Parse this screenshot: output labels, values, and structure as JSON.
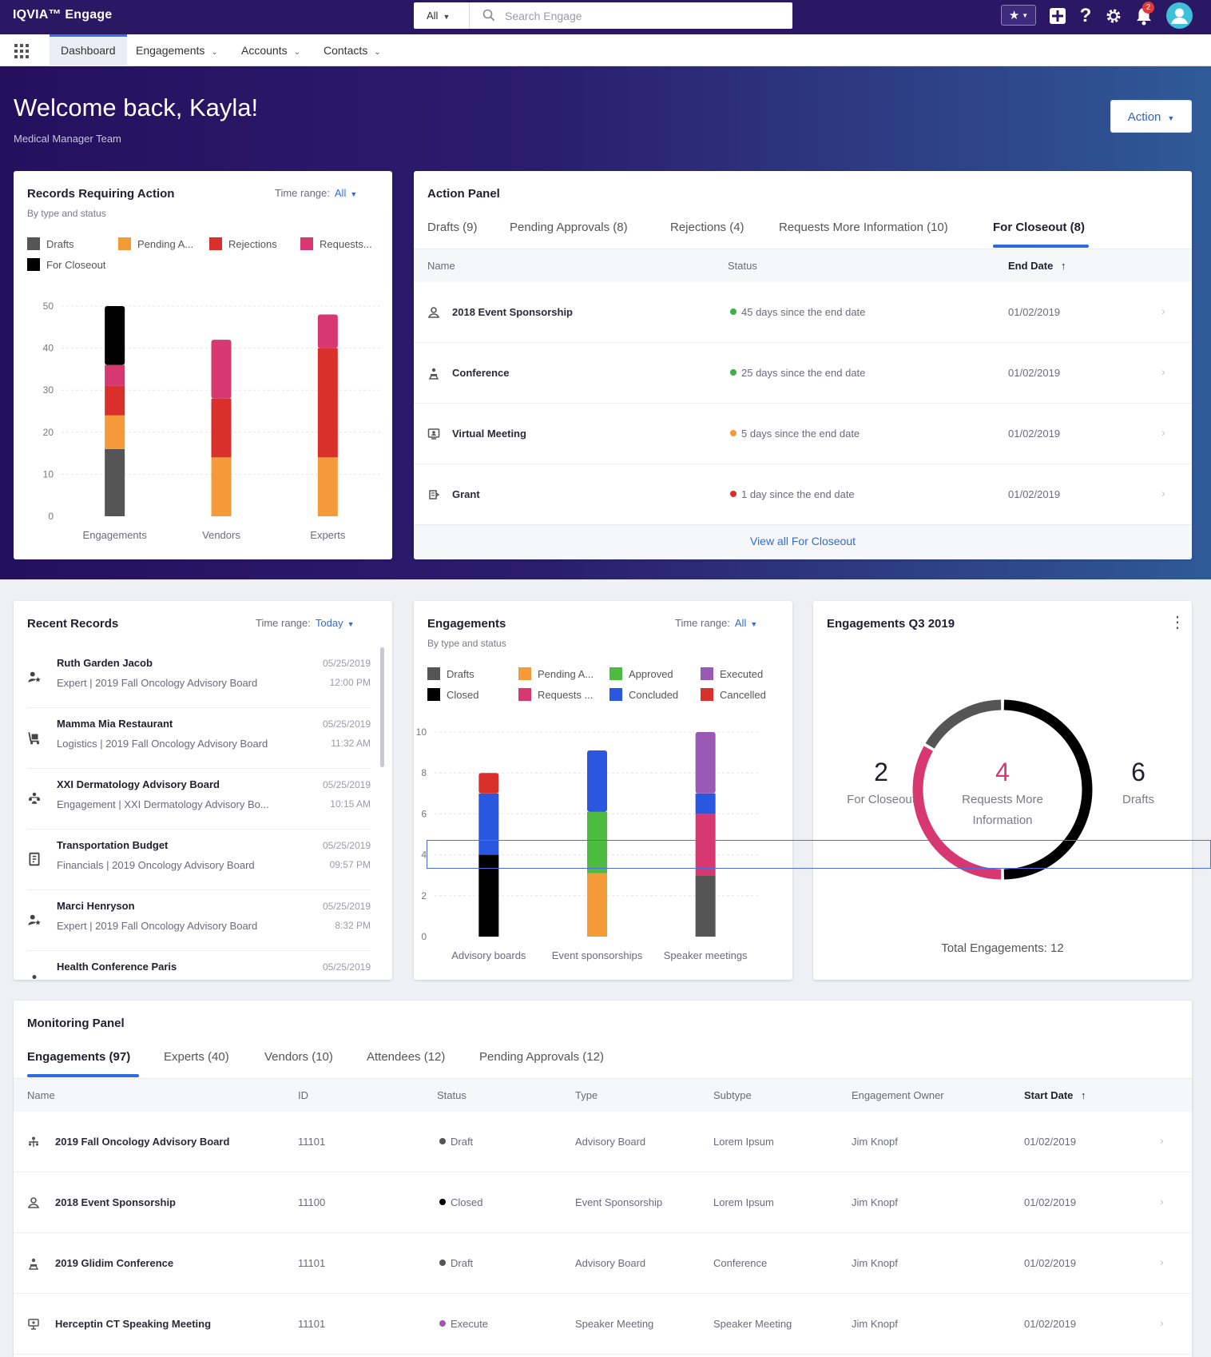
{
  "app": {
    "brand": "IQVIA™ Engage",
    "search_scope": "All",
    "search_placeholder": "Search Engage",
    "notification_count": "2"
  },
  "nav": {
    "items": [
      {
        "label": "Dashboard",
        "active": true
      },
      {
        "label": "Engagements"
      },
      {
        "label": "Accounts"
      },
      {
        "label": "Contacts"
      }
    ]
  },
  "hero": {
    "welcome": "Welcome back, Kayla!",
    "team": "Medical Manager Team",
    "action_label": "Action"
  },
  "records_card": {
    "title": "Records Requiring Action",
    "subtitle": "By type and status",
    "time_range_label": "Time range:",
    "time_range_value": "All",
    "legend": [
      {
        "label": "Drafts",
        "color": "#555555"
      },
      {
        "label": "Pending A...",
        "color": "#f59a38"
      },
      {
        "label": "Rejections",
        "color": "#d9302c"
      },
      {
        "label": "Requests...",
        "color": "#d6386f"
      },
      {
        "label": "For Closeout",
        "color": "#000000"
      }
    ]
  },
  "chart_data": [
    {
      "type": "bar",
      "stacked": true,
      "title": "Records Requiring Action",
      "subtitle": "By type and status",
      "categories": [
        "Engagements",
        "Vendors",
        "Experts"
      ],
      "ylim": [
        0,
        50
      ],
      "yticks": [
        0,
        10,
        20,
        30,
        40,
        50
      ],
      "grid": true,
      "legend_position": "top",
      "series": [
        {
          "name": "Drafts",
          "color": "#555555",
          "values": [
            16,
            0,
            0
          ]
        },
        {
          "name": "Pending A...",
          "color": "#f59a38",
          "values": [
            8,
            14,
            14
          ]
        },
        {
          "name": "Rejections",
          "color": "#d9302c",
          "values": [
            7,
            14,
            26
          ]
        },
        {
          "name": "Requests...",
          "color": "#d6386f",
          "values": [
            5,
            14,
            8
          ]
        },
        {
          "name": "For Closeout",
          "color": "#000000",
          "values": [
            14,
            0,
            0
          ]
        }
      ]
    },
    {
      "type": "bar",
      "stacked": true,
      "title": "Engagements",
      "subtitle": "By type and status",
      "categories": [
        "Advisory boards",
        "Event sponsorships",
        "Speaker meetings"
      ],
      "ylim": [
        0,
        10
      ],
      "yticks": [
        0,
        2,
        4,
        6,
        8,
        10
      ],
      "grid": true,
      "legend_position": "top",
      "series": [
        {
          "name": "Drafts",
          "color": "#555555",
          "values": [
            0,
            0,
            3
          ]
        },
        {
          "name": "Closed",
          "color": "#000000",
          "values": [
            4,
            0,
            0
          ]
        },
        {
          "name": "Pending A...",
          "color": "#f59a38",
          "values": [
            0,
            3.1,
            0
          ]
        },
        {
          "name": "Requests ...",
          "color": "#d6386f",
          "values": [
            0,
            0,
            3
          ]
        },
        {
          "name": "Approved",
          "color": "#4dbb3f",
          "values": [
            0,
            3,
            0
          ]
        },
        {
          "name": "Concluded",
          "color": "#2a57e0",
          "values": [
            3,
            3,
            1
          ]
        },
        {
          "name": "Executed",
          "color": "#9b59b6",
          "values": [
            0,
            0,
            3
          ]
        },
        {
          "name": "Cancelled",
          "color": "#d9302c",
          "values": [
            1,
            0,
            0
          ]
        }
      ]
    },
    {
      "type": "pie",
      "donut": true,
      "title": "Engagements Q3 2019",
      "total_label": "Total Engagements: 12",
      "series": [
        {
          "name": "For Closeout",
          "value": 2,
          "color": "#555555"
        },
        {
          "name": "Requests More Information",
          "value": 4,
          "color": "#d6386f"
        },
        {
          "name": "Drafts",
          "value": 6,
          "color": "#000000"
        }
      ]
    }
  ],
  "action_panel": {
    "title": "Action Panel",
    "tabs": [
      {
        "label": "Drafts (9)"
      },
      {
        "label": "Pending Approvals (8)"
      },
      {
        "label": "Rejections (4)"
      },
      {
        "label": "Requests More Information (10)"
      },
      {
        "label": "For Closeout (8)",
        "active": true
      }
    ],
    "columns": {
      "name": "Name",
      "status": "Status",
      "end_date": "End Date"
    },
    "rows": [
      {
        "icon": "sponsorship-icon",
        "name": "2018 Event Sponsorship",
        "status": "45 days since the end date",
        "status_color": "#3cb043",
        "date": "01/02/2019"
      },
      {
        "icon": "conference-icon",
        "name": "Conference",
        "status": "25 days since the end date",
        "status_color": "#3cb043",
        "date": "01/02/2019"
      },
      {
        "icon": "virtual-meeting-icon",
        "name": "Virtual Meeting",
        "status": "5 days since the end date",
        "status_color": "#f59a38",
        "date": "01/02/2019"
      },
      {
        "icon": "grant-icon",
        "name": "Grant",
        "status": "1 day since the end date",
        "status_color": "#d9302c",
        "date": "01/02/2019"
      }
    ],
    "view_all": "View all For Closeout"
  },
  "recent_records": {
    "title": "Recent Records",
    "time_range_label": "Time range:",
    "time_range_value": "Today",
    "items": [
      {
        "icon": "expert-icon",
        "title": "Ruth Garden Jacob",
        "sub": "Expert | 2019 Fall Oncology Advisory Board",
        "date": "05/25/2019",
        "time": "12:00 PM"
      },
      {
        "icon": "logistics-icon",
        "title": "Mamma Mia Restaurant",
        "sub": "Logistics | 2019 Fall Oncology Advisory Board",
        "date": "05/25/2019",
        "time": "11:32 AM"
      },
      {
        "icon": "engagement-icon",
        "title": "XXI Dermatology Advisory Board",
        "sub": "Engagement | XXI Dermatology Advisory Bo...",
        "date": "05/25/2019",
        "time": "10:15 AM"
      },
      {
        "icon": "financials-icon",
        "title": "Transportation Budget",
        "sub": "Financials | 2019 Oncology Advisory Board",
        "date": "05/25/2019",
        "time": "09:57 PM"
      },
      {
        "icon": "expert-icon",
        "title": "Marci Henryson",
        "sub": "Expert | 2019 Fall Oncology Advisory Board",
        "date": "05/25/2019",
        "time": "8:32 PM"
      },
      {
        "icon": "conference-icon",
        "title": "Health Conference Paris",
        "sub": "",
        "date": "05/25/2019",
        "time": ""
      }
    ]
  },
  "engagements_card": {
    "title": "Engagements",
    "subtitle": "By type and status",
    "time_range_label": "Time range:",
    "time_range_value": "All",
    "legend": [
      {
        "label": "Drafts",
        "color": "#555555"
      },
      {
        "label": "Pending A...",
        "color": "#f59a38"
      },
      {
        "label": "Approved",
        "color": "#4dbb3f"
      },
      {
        "label": "Executed",
        "color": "#9b59b6"
      },
      {
        "label": "Closed",
        "color": "#000000"
      },
      {
        "label": "Requests ...",
        "color": "#d6386f"
      },
      {
        "label": "Concluded",
        "color": "#2a57e0"
      },
      {
        "label": "Cancelled",
        "color": "#d9302c"
      }
    ]
  },
  "q3_card": {
    "title": "Engagements Q3 2019",
    "left_num": "2",
    "left_lbl": "For Closeout",
    "center_num": "4",
    "center_lbl": "Requests More Information",
    "right_num": "6",
    "right_lbl": "Drafts",
    "total": "Total Engagements: 12"
  },
  "monitoring": {
    "title": "Monitoring Panel",
    "tabs": [
      {
        "label": "Engagements (97)",
        "active": true
      },
      {
        "label": "Experts (40)"
      },
      {
        "label": "Vendors (10)"
      },
      {
        "label": "Attendees (12)"
      },
      {
        "label": "Pending Approvals (12)"
      }
    ],
    "columns": {
      "name": "Name",
      "id": "ID",
      "status": "Status",
      "type": "Type",
      "subtype": "Subtype",
      "owner": "Engagement Owner",
      "start": "Start Date"
    },
    "rows": [
      {
        "icon": "advisory-board-icon",
        "name": "2019 Fall Oncology Advisory Board",
        "id": "11101",
        "status": "Draft",
        "status_color": "#555555",
        "type": "Advisory Board",
        "subtype": "Lorem Ipsum",
        "owner": "Jim Knopf",
        "start": "01/02/2019"
      },
      {
        "icon": "sponsorship-icon",
        "name": "2018 Event Sponsorship",
        "id": "11100",
        "status": "Closed",
        "status_color": "#000000",
        "type": "Event Sponsorship",
        "subtype": "Lorem Ipsum",
        "owner": "Jim Knopf",
        "start": "01/02/2019"
      },
      {
        "icon": "conference-icon",
        "name": "2019 Glidim Conference",
        "id": "11101",
        "status": "Draft",
        "status_color": "#555555",
        "type": "Advisory Board",
        "subtype": "Conference",
        "owner": "Jim Knopf",
        "start": "01/02/2019"
      },
      {
        "icon": "speaker-meeting-icon",
        "name": "Herceptin CT Speaking Meeting",
        "id": "11101",
        "status": "Execute",
        "status_color": "#9b59b6",
        "type": "Speaker Meeting",
        "subtype": "Speaker Meeting",
        "owner": "Jim Knopf",
        "start": "01/02/2019"
      }
    ]
  }
}
